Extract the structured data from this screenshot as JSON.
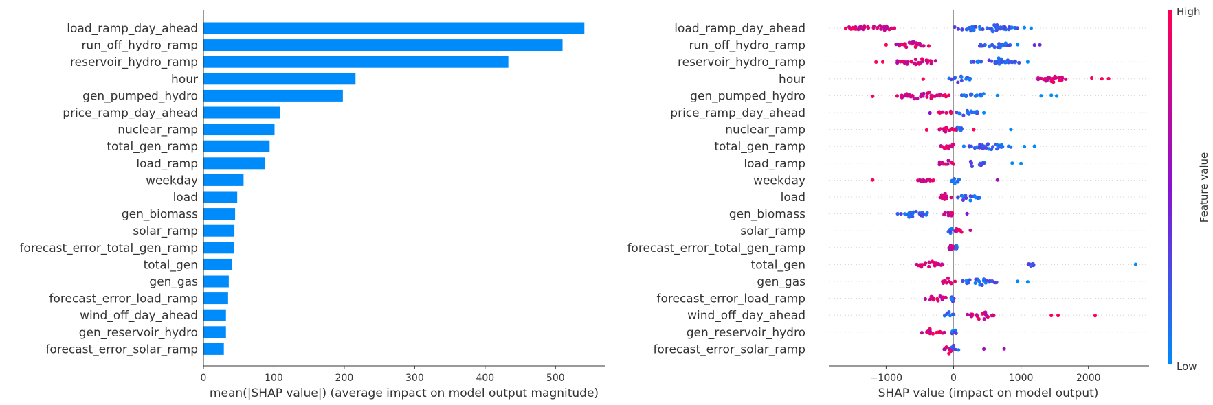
{
  "chart_data": [
    {
      "type": "bar",
      "orientation": "horizontal",
      "categories": [
        "load_ramp_day_ahead",
        "run_off_hydro_ramp",
        "reservoir_hydro_ramp",
        "hour",
        "gen_pumped_hydro",
        "price_ramp_day_ahead",
        "nuclear_ramp",
        "total_gen_ramp",
        "load_ramp",
        "weekday",
        "load",
        "gen_biomass",
        "solar_ramp",
        "forecast_error_total_gen_ramp",
        "total_gen",
        "gen_gas",
        "forecast_error_load_ramp",
        "wind_off_day_ahead",
        "gen_reservoir_hydro",
        "forecast_error_solar_ramp"
      ],
      "values": [
        541,
        510,
        433,
        216,
        198,
        109,
        101,
        94,
        87,
        57,
        48,
        45,
        44,
        43,
        41,
        36,
        35,
        32,
        32,
        29
      ],
      "xlabel": "mean(|SHAP value|) (average impact on model output magnitude)",
      "xlim": [
        0,
        570
      ],
      "xticks": [
        0,
        100,
        200,
        300,
        400,
        500
      ],
      "bar_color": "#008bfb"
    },
    {
      "type": "scatter",
      "subtype": "beeswarm",
      "features": [
        {
          "name": "load_ramp_day_ahead",
          "low_range": [
            -100,
            1100
          ],
          "high_range": [
            -1700,
            -800
          ],
          "outliers": [
            [
              -1600,
              1
            ],
            [
              -1500,
              1
            ],
            [
              1150,
              0
            ],
            [
              1050,
              0
            ]
          ]
        },
        {
          "name": "run_off_hydro_ramp",
          "low_range": [
            300,
            900
          ],
          "high_range": [
            -900,
            -300
          ],
          "outliers": [
            [
              -1000,
              1
            ],
            [
              1200,
              0.4
            ],
            [
              1280,
              0.4
            ],
            [
              950,
              0
            ]
          ]
        },
        {
          "name": "reservoir_hydro_ramp",
          "low_range": [
            200,
            1000
          ],
          "high_range": [
            -900,
            -200
          ],
          "outliers": [
            [
              -1150,
              1
            ],
            [
              -1050,
              1
            ],
            [
              1100,
              0
            ]
          ]
        },
        {
          "name": "hour",
          "low_range": [
            -100,
            300
          ],
          "high_range": [
            1200,
            1800
          ],
          "outliers": [
            [
              -450,
              1
            ],
            [
              2050,
              1
            ],
            [
              2200,
              1
            ],
            [
              2300,
              1
            ]
          ]
        },
        {
          "name": "gen_pumped_hydro",
          "low_range": [
            100,
            500
          ],
          "high_range": [
            -900,
            0
          ],
          "outliers": [
            [
              -1200,
              1
            ],
            [
              1300,
              0
            ],
            [
              1450,
              0
            ],
            [
              1530,
              0
            ],
            [
              650,
              0
            ]
          ]
        },
        {
          "name": "price_ramp_day_ahead",
          "low_range": [
            0,
            400
          ],
          "high_range": [
            -250,
            0
          ],
          "outliers": [
            [
              -350,
              0.5
            ],
            [
              450,
              0
            ]
          ]
        },
        {
          "name": "nuclear_ramp",
          "low_range": [
            0,
            150
          ],
          "high_range": [
            -250,
            100
          ],
          "outliers": [
            [
              -400,
              1
            ],
            [
              300,
              1
            ],
            [
              850,
              0
            ]
          ]
        },
        {
          "name": "total_gen_ramp",
          "low_range": [
            100,
            900
          ],
          "high_range": [
            -200,
            50
          ],
          "outliers": [
            [
              1050,
              0
            ],
            [
              1200,
              0
            ]
          ]
        },
        {
          "name": "load_ramp",
          "low_range": [
            150,
            500
          ],
          "high_range": [
            -250,
            50
          ],
          "outliers": [
            [
              870,
              0
            ],
            [
              1000,
              0
            ]
          ]
        },
        {
          "name": "weekday",
          "low_range": [
            -50,
            100
          ],
          "high_range": [
            -600,
            -200
          ],
          "outliers": [
            [
              -1200,
              1
            ],
            [
              650,
              0.6
            ]
          ]
        },
        {
          "name": "load",
          "low_range": [
            0,
            400
          ],
          "high_range": [
            -250,
            0
          ],
          "outliers": []
        },
        {
          "name": "gen_biomass",
          "low_range": [
            -900,
            -300
          ],
          "high_range": [
            -200,
            50
          ],
          "outliers": [
            [
              200,
              0.5
            ]
          ]
        },
        {
          "name": "solar_ramp",
          "low_range": [
            -100,
            0
          ],
          "high_range": [
            0,
            150
          ],
          "outliers": [
            [
              250,
              0.7
            ]
          ]
        },
        {
          "name": "forecast_error_total_gen_ramp",
          "low_range": [
            0,
            80
          ],
          "high_range": [
            -80,
            0
          ],
          "outliers": []
        },
        {
          "name": "total_gen",
          "low_range": [
            1100,
            1200
          ],
          "high_range": [
            -600,
            -100
          ],
          "outliers": [
            [
              2700,
              0
            ]
          ]
        },
        {
          "name": "gen_gas",
          "low_range": [
            50,
            700
          ],
          "high_range": [
            -200,
            50
          ],
          "outliers": [
            [
              950,
              0
            ],
            [
              1100,
              0
            ]
          ]
        },
        {
          "name": "forecast_error_load_ramp",
          "low_range": [
            -50,
            30
          ],
          "high_range": [
            -450,
            -50
          ],
          "outliers": []
        },
        {
          "name": "wind_off_day_ahead",
          "low_range": [
            -150,
            50
          ],
          "high_range": [
            150,
            650
          ],
          "outliers": [
            [
              1450,
              1
            ],
            [
              1550,
              1
            ],
            [
              2100,
              1
            ]
          ]
        },
        {
          "name": "gen_reservoir_hydro",
          "low_range": [
            -50,
            50
          ],
          "high_range": [
            -500,
            -100
          ],
          "outliers": []
        },
        {
          "name": "forecast_error_solar_ramp",
          "low_range": [
            -100,
            100
          ],
          "high_range": [
            -150,
            0
          ],
          "outliers": [
            [
              450,
              0.6
            ],
            [
              750,
              0.6
            ]
          ]
        }
      ],
      "xlabel": "SHAP value (impact on model output)",
      "xlim": [
        -1850,
        2900
      ],
      "xticks": [
        -1000,
        0,
        1000,
        2000
      ],
      "xtick_labels": [
        "−1000",
        "0",
        "1000",
        "2000"
      ],
      "colorbar": {
        "label": "Feature value",
        "high_label": "High",
        "low_label": "Low",
        "low_color": "#008bfb",
        "mid_color": "#8812d1",
        "high_color": "#ff0052"
      }
    }
  ]
}
